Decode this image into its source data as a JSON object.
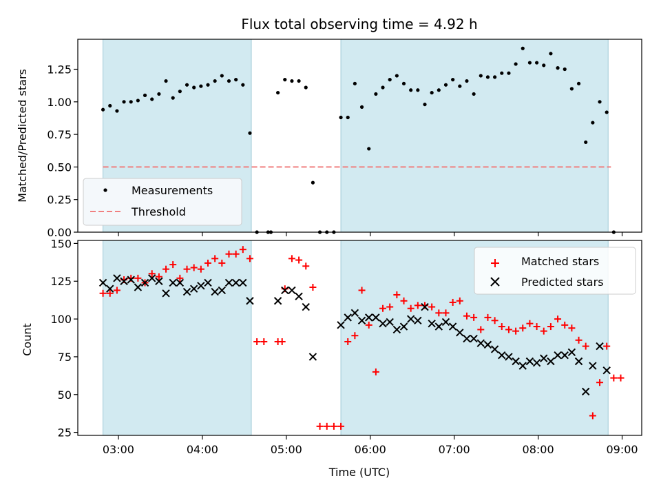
{
  "chart_data": [
    {
      "type": "scatter",
      "title": "Flux total observing time = 4.92 h",
      "xlabel": "",
      "ylabel": "Matched/Predicted stars",
      "ylim": [
        0,
        1.48
      ],
      "yticks": [
        0,
        0.25,
        0.5,
        0.75,
        1.0,
        1.25
      ],
      "ytick_labels": [
        "0.00",
        "0.25",
        "0.50",
        "0.75",
        "1.00",
        "1.25"
      ],
      "xlim": [
        "02:31",
        "09:14"
      ],
      "xticks": [
        "03:00",
        "04:00",
        "05:00",
        "06:00",
        "07:00",
        "08:00",
        "09:00"
      ],
      "observing_windows": [
        [
          "02:49",
          "04:35"
        ],
        [
          "05:39",
          "08:50"
        ]
      ],
      "window_color": "#add8e6",
      "legend_position": "lower-left",
      "series": [
        {
          "name": "Measurements",
          "marker": "dot",
          "color": "#000000",
          "points": [
            [
              "02:49",
              0.94
            ],
            [
              "02:54",
              0.97
            ],
            [
              "02:59",
              0.93
            ],
            [
              "03:04",
              1.0
            ],
            [
              "03:09",
              1.0
            ],
            [
              "03:14",
              1.01
            ],
            [
              "03:19",
              1.05
            ],
            [
              "03:24",
              1.02
            ],
            [
              "03:29",
              1.06
            ],
            [
              "03:34",
              1.16
            ],
            [
              "03:39",
              1.03
            ],
            [
              "03:44",
              1.08
            ],
            [
              "03:49",
              1.13
            ],
            [
              "03:54",
              1.11
            ],
            [
              "03:59",
              1.12
            ],
            [
              "04:04",
              1.13
            ],
            [
              "04:09",
              1.16
            ],
            [
              "04:14",
              1.2
            ],
            [
              "04:19",
              1.16
            ],
            [
              "04:24",
              1.17
            ],
            [
              "04:29",
              1.13
            ],
            [
              "04:34",
              0.76
            ],
            [
              "04:39",
              0.0
            ],
            [
              "04:47",
              0.0
            ],
            [
              "04:49",
              0.0
            ],
            [
              "04:54",
              1.07
            ],
            [
              "04:59",
              1.17
            ],
            [
              "05:04",
              1.16
            ],
            [
              "05:09",
              1.16
            ],
            [
              "05:14",
              1.11
            ],
            [
              "05:19",
              0.38
            ],
            [
              "05:24",
              0.0
            ],
            [
              "05:29",
              0.0
            ],
            [
              "05:34",
              0.0
            ],
            [
              "05:39",
              0.88
            ],
            [
              "05:44",
              0.88
            ],
            [
              "05:49",
              1.14
            ],
            [
              "05:54",
              0.96
            ],
            [
              "05:59",
              0.64
            ],
            [
              "06:04",
              1.06
            ],
            [
              "06:09",
              1.11
            ],
            [
              "06:14",
              1.17
            ],
            [
              "06:19",
              1.2
            ],
            [
              "06:24",
              1.14
            ],
            [
              "06:29",
              1.09
            ],
            [
              "06:34",
              1.09
            ],
            [
              "06:39",
              0.98
            ],
            [
              "06:44",
              1.07
            ],
            [
              "06:49",
              1.09
            ],
            [
              "06:54",
              1.13
            ],
            [
              "06:59",
              1.17
            ],
            [
              "07:04",
              1.12
            ],
            [
              "07:09",
              1.16
            ],
            [
              "07:14",
              1.06
            ],
            [
              "07:19",
              1.2
            ],
            [
              "07:24",
              1.19
            ],
            [
              "07:29",
              1.19
            ],
            [
              "07:34",
              1.22
            ],
            [
              "07:39",
              1.22
            ],
            [
              "07:44",
              1.29
            ],
            [
              "07:49",
              1.41
            ],
            [
              "07:54",
              1.3
            ],
            [
              "07:59",
              1.3
            ],
            [
              "08:04",
              1.28
            ],
            [
              "08:09",
              1.37
            ],
            [
              "08:14",
              1.26
            ],
            [
              "08:19",
              1.25
            ],
            [
              "08:24",
              1.1
            ],
            [
              "08:29",
              1.14
            ],
            [
              "08:34",
              0.69
            ],
            [
              "08:39",
              0.84
            ],
            [
              "08:44",
              1.0
            ],
            [
              "08:49",
              0.92
            ],
            [
              "08:54",
              0.0
            ]
          ]
        },
        {
          "name": "Threshold",
          "marker": "dashed-line",
          "color": "#f08080",
          "value": 0.5,
          "x_range": [
            "02:49",
            "08:52"
          ]
        }
      ]
    },
    {
      "type": "scatter",
      "title": "",
      "xlabel": "Time (UTC)",
      "ylabel": "Count",
      "ylim": [
        23,
        152
      ],
      "yticks": [
        25,
        50,
        75,
        100,
        125,
        150
      ],
      "ytick_labels": [
        "25",
        "50",
        "75",
        "100",
        "125",
        "150"
      ],
      "xlim": [
        "02:31",
        "09:14"
      ],
      "xticks": [
        "03:00",
        "04:00",
        "05:00",
        "06:00",
        "07:00",
        "08:00",
        "09:00"
      ],
      "xtick_labels": [
        "03:00",
        "04:00",
        "05:00",
        "06:00",
        "07:00",
        "08:00",
        "09:00"
      ],
      "observing_windows": [
        [
          "02:49",
          "04:35"
        ],
        [
          "05:39",
          "08:50"
        ]
      ],
      "window_color": "#add8e6",
      "legend_position": "upper-right",
      "series": [
        {
          "name": "Matched stars",
          "marker": "plus",
          "color": "#ff0000",
          "points": [
            [
              "02:49",
              117
            ],
            [
              "02:54",
              117
            ],
            [
              "02:59",
              119
            ],
            [
              "03:04",
              126
            ],
            [
              "03:09",
              127
            ],
            [
              "03:14",
              127
            ],
            [
              "03:19",
              124
            ],
            [
              "03:24",
              130
            ],
            [
              "03:29",
              128
            ],
            [
              "03:34",
              133
            ],
            [
              "03:39",
              136
            ],
            [
              "03:44",
              127
            ],
            [
              "03:49",
              133
            ],
            [
              "03:54",
              134
            ],
            [
              "03:59",
              133
            ],
            [
              "04:04",
              137
            ],
            [
              "04:09",
              140
            ],
            [
              "04:14",
              137
            ],
            [
              "04:19",
              143
            ],
            [
              "04:24",
              143
            ],
            [
              "04:29",
              146
            ],
            [
              "04:34",
              140
            ],
            [
              "04:39",
              85
            ],
            [
              "04:44",
              85
            ],
            [
              "04:54",
              85
            ],
            [
              "04:57",
              85
            ],
            [
              "04:59",
              120
            ],
            [
              "05:04",
              140
            ],
            [
              "05:09",
              139
            ],
            [
              "05:14",
              135
            ],
            [
              "05:19",
              121
            ],
            [
              "05:24",
              29
            ],
            [
              "05:29",
              29
            ],
            [
              "05:34",
              29
            ],
            [
              "05:39",
              29
            ],
            [
              "05:44",
              85
            ],
            [
              "05:49",
              89
            ],
            [
              "05:54",
              119
            ],
            [
              "05:59",
              96
            ],
            [
              "06:04",
              65
            ],
            [
              "06:09",
              107
            ],
            [
              "06:14",
              108
            ],
            [
              "06:19",
              116
            ],
            [
              "06:24",
              112
            ],
            [
              "06:29",
              107
            ],
            [
              "06:34",
              109
            ],
            [
              "06:39",
              109
            ],
            [
              "06:44",
              108
            ],
            [
              "06:49",
              104
            ],
            [
              "06:54",
              104
            ],
            [
              "06:59",
              111
            ],
            [
              "07:04",
              112
            ],
            [
              "07:09",
              102
            ],
            [
              "07:14",
              101
            ],
            [
              "07:19",
              93
            ],
            [
              "07:24",
              101
            ],
            [
              "07:29",
              99
            ],
            [
              "07:34",
              95
            ],
            [
              "07:39",
              93
            ],
            [
              "07:44",
              92
            ],
            [
              "07:49",
              94
            ],
            [
              "07:54",
              97
            ],
            [
              "07:59",
              95
            ],
            [
              "08:04",
              92
            ],
            [
              "08:09",
              95
            ],
            [
              "08:14",
              100
            ],
            [
              "08:19",
              96
            ],
            [
              "08:24",
              94
            ],
            [
              "08:29",
              86
            ],
            [
              "08:34",
              82
            ],
            [
              "08:39",
              36
            ],
            [
              "08:44",
              58
            ],
            [
              "08:49",
              82
            ],
            [
              "08:54",
              61
            ],
            [
              "08:59",
              61
            ]
          ]
        },
        {
          "name": "Predicted stars",
          "marker": "x",
          "color": "#000000",
          "points": [
            [
              "02:49",
              124
            ],
            [
              "02:54",
              120
            ],
            [
              "02:59",
              127
            ],
            [
              "03:04",
              125
            ],
            [
              "03:09",
              126
            ],
            [
              "03:14",
              121
            ],
            [
              "03:19",
              124
            ],
            [
              "03:24",
              127
            ],
            [
              "03:29",
              125
            ],
            [
              "03:34",
              117
            ],
            [
              "03:39",
              124
            ],
            [
              "03:44",
              124
            ],
            [
              "03:49",
              118
            ],
            [
              "03:54",
              120
            ],
            [
              "03:59",
              122
            ],
            [
              "04:04",
              124
            ],
            [
              "04:09",
              118
            ],
            [
              "04:14",
              119
            ],
            [
              "04:19",
              124
            ],
            [
              "04:24",
              124
            ],
            [
              "04:29",
              124
            ],
            [
              "04:34",
              112
            ],
            [
              "04:54",
              112
            ],
            [
              "04:59",
              119
            ],
            [
              "05:04",
              119
            ],
            [
              "05:09",
              115
            ],
            [
              "05:14",
              108
            ],
            [
              "05:19",
              75
            ],
            [
              "05:39",
              96
            ],
            [
              "05:44",
              101
            ],
            [
              "05:49",
              104
            ],
            [
              "05:54",
              99
            ],
            [
              "05:59",
              101
            ],
            [
              "06:04",
              101
            ],
            [
              "06:09",
              97
            ],
            [
              "06:14",
              98
            ],
            [
              "06:19",
              93
            ],
            [
              "06:24",
              95
            ],
            [
              "06:29",
              100
            ],
            [
              "06:34",
              99
            ],
            [
              "06:39",
              108
            ],
            [
              "06:44",
              97
            ],
            [
              "06:49",
              95
            ],
            [
              "06:54",
              98
            ],
            [
              "06:59",
              95
            ],
            [
              "07:04",
              91
            ],
            [
              "07:09",
              87
            ],
            [
              "07:14",
              87
            ],
            [
              "07:19",
              84
            ],
            [
              "07:24",
              83
            ],
            [
              "07:29",
              80
            ],
            [
              "07:34",
              76
            ],
            [
              "07:39",
              75
            ],
            [
              "07:44",
              72
            ],
            [
              "07:49",
              69
            ],
            [
              "07:54",
              72
            ],
            [
              "07:59",
              71
            ],
            [
              "08:04",
              74
            ],
            [
              "08:09",
              72
            ],
            [
              "08:14",
              76
            ],
            [
              "08:19",
              76
            ],
            [
              "08:24",
              78
            ],
            [
              "08:29",
              72
            ],
            [
              "08:34",
              52
            ],
            [
              "08:39",
              69
            ],
            [
              "08:44",
              82
            ],
            [
              "08:49",
              66
            ]
          ]
        }
      ]
    }
  ]
}
